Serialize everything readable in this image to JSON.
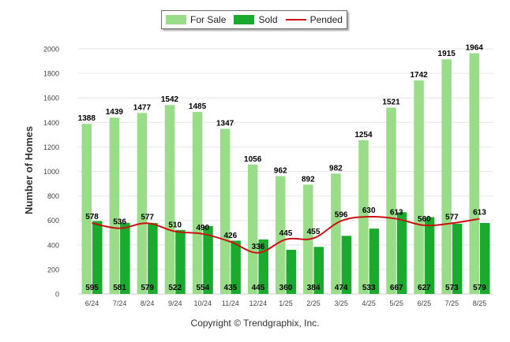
{
  "chart_data": {
    "type": "bar",
    "categories": [
      "6/24",
      "7/24",
      "8/24",
      "9/24",
      "10/24",
      "11/24",
      "12/24",
      "1/25",
      "2/25",
      "3/25",
      "4/25",
      "5/25",
      "6/25",
      "7/25",
      "8/25"
    ],
    "series": [
      {
        "name": "For Sale",
        "kind": "bar",
        "color": "#99dd88",
        "values": [
          1388,
          1439,
          1477,
          1542,
          1485,
          1347,
          1056,
          962,
          892,
          982,
          1254,
          1521,
          1742,
          1915,
          1964
        ]
      },
      {
        "name": "Sold",
        "kind": "bar",
        "color": "#1aaa2e",
        "values": [
          595,
          581,
          579,
          522,
          554,
          435,
          445,
          360,
          384,
          474,
          533,
          667,
          627,
          573,
          579
        ]
      },
      {
        "name": "Pended",
        "kind": "line",
        "color": "#cc1111",
        "values": [
          578,
          536,
          577,
          510,
          490,
          426,
          336,
          445,
          455,
          596,
          630,
          613,
          560,
          577,
          613
        ]
      }
    ],
    "xlabel": "",
    "ylabel": "Number of Homes",
    "ylim": [
      0,
      2000
    ],
    "yticks": [
      "0",
      "200",
      "400",
      "600",
      "800",
      "1000",
      "1200",
      "1400",
      "1600",
      "1800",
      "2000"
    ],
    "grid": true,
    "legend_position": "top-center"
  },
  "legend": {
    "for_sale": "For Sale",
    "sold": "Sold",
    "pended": "Pended"
  },
  "footer": {
    "copyright": "Copyright © Trendgraphix, Inc."
  }
}
